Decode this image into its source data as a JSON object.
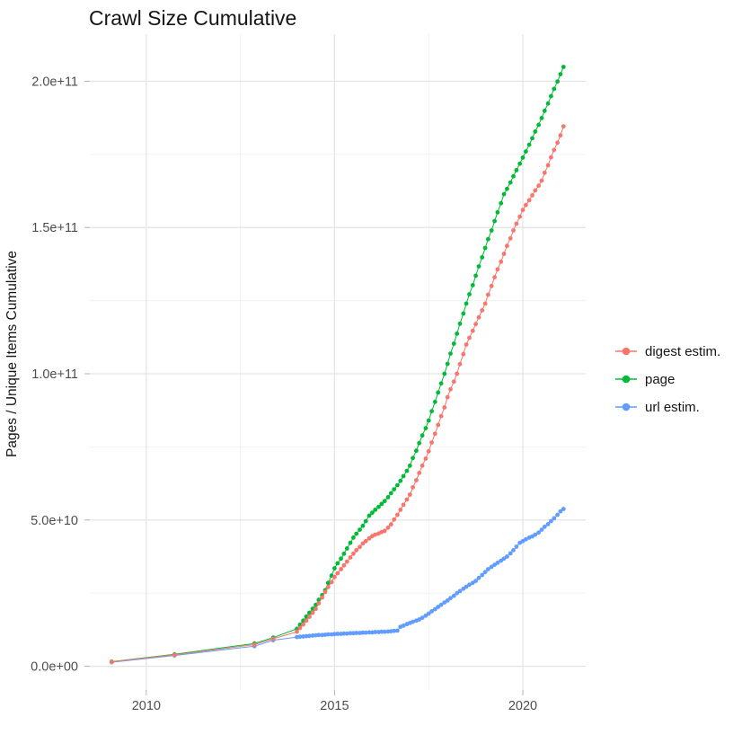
{
  "title": "Crawl Size Cumulative",
  "colors": {
    "background": "#ffffff",
    "grid_major": "#e3e3e3",
    "grid_minor": "#f0f0f0",
    "tick_mark": "#b3b3b3",
    "tick_label": "#4d4d4d",
    "text": "#151515"
  },
  "chart_data": {
    "type": "scatter",
    "title": "Crawl Size Cumulative",
    "xlabel": "",
    "ylabel": "Pages / Unique Items Cumulative",
    "legend_position": "right",
    "grid": true,
    "unit": "values are billions (1e9) of pages / unique items",
    "xlim": [
      2008.5,
      2021.67
    ],
    "ylim": [
      -8.1,
      216.1
    ],
    "x_ticks": [
      {
        "value": 2010,
        "label": "2010"
      },
      {
        "value": 2015,
        "label": "2015"
      },
      {
        "value": 2020,
        "label": "2020"
      }
    ],
    "y_ticks": [
      {
        "value": 0,
        "label": "0.0e+00"
      },
      {
        "value": 50,
        "label": "5.0e+10"
      },
      {
        "value": 100,
        "label": "1.0e+11"
      },
      {
        "value": 150,
        "label": "1.5e+11"
      },
      {
        "value": 200,
        "label": "2.0e+11"
      }
    ],
    "x_minor": [
      2012.5,
      2017.5
    ],
    "y_minor": [
      25,
      75,
      125,
      175
    ],
    "series": [
      {
        "key": "digest-estim",
        "name": "digest estim.",
        "color": "#F8766D",
        "z": 3,
        "points": [
          [
            2009.08,
            1.5
          ],
          [
            2010.75,
            3.9
          ],
          [
            2012.87,
            7.4
          ],
          [
            2013.37,
            9.4
          ],
          [
            2014,
            11.8
          ],
          [
            2014.08,
            13.1
          ],
          [
            2014.17,
            14.3
          ],
          [
            2014.25,
            15.6
          ],
          [
            2014.33,
            16.9
          ],
          [
            2014.42,
            18.3
          ],
          [
            2014.5,
            19.6
          ],
          [
            2014.58,
            21.5
          ],
          [
            2014.67,
            23.5
          ],
          [
            2014.75,
            25.4
          ],
          [
            2014.83,
            27.1
          ],
          [
            2014.92,
            28.8
          ],
          [
            2015,
            30.5
          ],
          [
            2015.08,
            31.8
          ],
          [
            2015.17,
            33.2
          ],
          [
            2015.25,
            34.5
          ],
          [
            2015.33,
            35.8
          ],
          [
            2015.42,
            37.2
          ],
          [
            2015.5,
            38.5
          ],
          [
            2015.58,
            39.7
          ],
          [
            2015.67,
            40.8
          ],
          [
            2015.75,
            42
          ],
          [
            2015.83,
            42.8
          ],
          [
            2015.92,
            43.7
          ],
          [
            2016,
            44.5
          ],
          [
            2016.08,
            45
          ],
          [
            2016.17,
            45.4
          ],
          [
            2016.25,
            45.9
          ],
          [
            2016.33,
            46.3
          ],
          [
            2016.42,
            47.4
          ],
          [
            2016.5,
            48.5
          ],
          [
            2016.58,
            50.2
          ],
          [
            2016.67,
            51.8
          ],
          [
            2016.75,
            53.5
          ],
          [
            2016.83,
            55.2
          ],
          [
            2016.92,
            57
          ],
          [
            2017,
            58.7
          ],
          [
            2017.08,
            61.2
          ],
          [
            2017.17,
            63.6
          ],
          [
            2017.25,
            66.1
          ],
          [
            2017.33,
            68.6
          ],
          [
            2017.42,
            71
          ],
          [
            2017.5,
            73.5
          ],
          [
            2017.58,
            76.5
          ],
          [
            2017.67,
            79.5
          ],
          [
            2017.75,
            82.5
          ],
          [
            2017.83,
            85.5
          ],
          [
            2017.92,
            88.5
          ],
          [
            2018,
            92
          ],
          [
            2018.08,
            94.7
          ],
          [
            2018.17,
            97.3
          ],
          [
            2018.25,
            100
          ],
          [
            2018.33,
            103.3
          ],
          [
            2018.42,
            106.7
          ],
          [
            2018.5,
            110
          ],
          [
            2018.58,
            112.3
          ],
          [
            2018.67,
            114.7
          ],
          [
            2018.75,
            117
          ],
          [
            2018.83,
            119.3
          ],
          [
            2018.92,
            121.7
          ],
          [
            2019,
            124
          ],
          [
            2019.08,
            127
          ],
          [
            2019.17,
            130
          ],
          [
            2019.25,
            133
          ],
          [
            2019.33,
            135.7
          ],
          [
            2019.42,
            138.3
          ],
          [
            2019.5,
            141
          ],
          [
            2019.58,
            143.7
          ],
          [
            2019.67,
            146.3
          ],
          [
            2019.75,
            149
          ],
          [
            2019.83,
            151.3
          ],
          [
            2019.92,
            153.7
          ],
          [
            2020,
            156
          ],
          [
            2020.08,
            157.7
          ],
          [
            2020.17,
            159.3
          ],
          [
            2020.25,
            161
          ],
          [
            2020.33,
            162.7
          ],
          [
            2020.42,
            164.3
          ],
          [
            2020.5,
            166
          ],
          [
            2020.58,
            168.7
          ],
          [
            2020.67,
            171.3
          ],
          [
            2020.75,
            174
          ],
          [
            2020.83,
            176.5
          ],
          [
            2020.92,
            179
          ],
          [
            2021,
            181.5
          ],
          [
            2021.08,
            184.6
          ]
        ]
      },
      {
        "key": "page",
        "name": "page",
        "color": "#00BA38",
        "z": 1,
        "points": [
          [
            2009.08,
            1.6
          ],
          [
            2010.75,
            4.1
          ],
          [
            2012.87,
            7.8
          ],
          [
            2013.37,
            9.8
          ],
          [
            2014,
            12.8
          ],
          [
            2014.08,
            14.2
          ],
          [
            2014.17,
            15.6
          ],
          [
            2014.25,
            17
          ],
          [
            2014.33,
            18.3
          ],
          [
            2014.42,
            19.7
          ],
          [
            2014.5,
            21
          ],
          [
            2014.58,
            22.7
          ],
          [
            2014.67,
            24.3
          ],
          [
            2014.75,
            26
          ],
          [
            2014.83,
            28.5
          ],
          [
            2014.92,
            31
          ],
          [
            2015,
            33.5
          ],
          [
            2015.08,
            35.2
          ],
          [
            2015.17,
            36.8
          ],
          [
            2015.25,
            38.5
          ],
          [
            2015.33,
            40.3
          ],
          [
            2015.42,
            42.2
          ],
          [
            2015.5,
            44
          ],
          [
            2015.58,
            45.3
          ],
          [
            2015.67,
            46.7
          ],
          [
            2015.75,
            48
          ],
          [
            2015.83,
            49.6
          ],
          [
            2015.92,
            51.5
          ],
          [
            2016,
            52.5
          ],
          [
            2016.08,
            53.5
          ],
          [
            2016.17,
            54.5
          ],
          [
            2016.25,
            55.5
          ],
          [
            2016.33,
            56.5
          ],
          [
            2016.42,
            57.8
          ],
          [
            2016.5,
            59.2
          ],
          [
            2016.58,
            60.5
          ],
          [
            2016.67,
            61.9
          ],
          [
            2016.75,
            63.4
          ],
          [
            2016.83,
            65
          ],
          [
            2016.92,
            66.8
          ],
          [
            2017,
            68.6
          ],
          [
            2017.08,
            71.2
          ],
          [
            2017.17,
            73.7
          ],
          [
            2017.25,
            76.3
          ],
          [
            2017.33,
            78.9
          ],
          [
            2017.42,
            81.4
          ],
          [
            2017.5,
            84
          ],
          [
            2017.58,
            87.2
          ],
          [
            2017.67,
            90.4
          ],
          [
            2017.75,
            93.6
          ],
          [
            2017.83,
            96.7
          ],
          [
            2017.92,
            100
          ],
          [
            2018,
            103.4
          ],
          [
            2018.08,
            106.9
          ],
          [
            2018.17,
            110.3
          ],
          [
            2018.25,
            113.7
          ],
          [
            2018.33,
            117.1
          ],
          [
            2018.42,
            120.6
          ],
          [
            2018.5,
            124
          ],
          [
            2018.58,
            127.2
          ],
          [
            2018.67,
            130.3
          ],
          [
            2018.75,
            133.5
          ],
          [
            2018.83,
            136.7
          ],
          [
            2018.92,
            139.8
          ],
          [
            2019,
            143
          ],
          [
            2019.08,
            146
          ],
          [
            2019.17,
            149
          ],
          [
            2019.25,
            152.2
          ],
          [
            2019.33,
            155.2
          ],
          [
            2019.42,
            158.3
          ],
          [
            2019.5,
            161.4
          ],
          [
            2019.58,
            163.2
          ],
          [
            2019.67,
            165.4
          ],
          [
            2019.75,
            167.5
          ],
          [
            2019.83,
            169.6
          ],
          [
            2019.92,
            171.8
          ],
          [
            2020,
            173.9
          ],
          [
            2020.08,
            176
          ],
          [
            2020.17,
            178.3
          ],
          [
            2020.25,
            180.5
          ],
          [
            2020.33,
            182.8
          ],
          [
            2020.42,
            185.1
          ],
          [
            2020.5,
            187.4
          ],
          [
            2020.58,
            189.9
          ],
          [
            2020.67,
            192.4
          ],
          [
            2020.75,
            194.9
          ],
          [
            2020.83,
            197.4
          ],
          [
            2020.92,
            199.9
          ],
          [
            2021,
            202.4
          ],
          [
            2021.08,
            204.9
          ]
        ]
      },
      {
        "key": "url-estim",
        "name": "url estim.",
        "color": "#619CFF",
        "z": 2,
        "points": [
          [
            2009.08,
            1.4
          ],
          [
            2010.75,
            3.7
          ],
          [
            2012.87,
            6.9
          ],
          [
            2013.37,
            8.9
          ],
          [
            2014,
            10
          ],
          [
            2014.08,
            10.1
          ],
          [
            2014.17,
            10.2
          ],
          [
            2014.25,
            10.3
          ],
          [
            2014.33,
            10.4
          ],
          [
            2014.42,
            10.5
          ],
          [
            2014.5,
            10.6
          ],
          [
            2014.58,
            10.7
          ],
          [
            2014.67,
            10.7
          ],
          [
            2014.75,
            10.8
          ],
          [
            2014.83,
            10.9
          ],
          [
            2014.92,
            10.9
          ],
          [
            2015,
            11
          ],
          [
            2015.08,
            11.1
          ],
          [
            2015.17,
            11.1
          ],
          [
            2015.25,
            11.2
          ],
          [
            2015.33,
            11.2
          ],
          [
            2015.42,
            11.3
          ],
          [
            2015.5,
            11.3
          ],
          [
            2015.58,
            11.4
          ],
          [
            2015.67,
            11.4
          ],
          [
            2015.75,
            11.5
          ],
          [
            2015.83,
            11.5
          ],
          [
            2015.92,
            11.6
          ],
          [
            2016,
            11.6
          ],
          [
            2016.08,
            11.7
          ],
          [
            2016.17,
            11.7
          ],
          [
            2016.25,
            11.8
          ],
          [
            2016.33,
            11.8
          ],
          [
            2016.42,
            11.9
          ],
          [
            2016.5,
            12
          ],
          [
            2016.58,
            12.1
          ],
          [
            2016.67,
            12.2
          ],
          [
            2016.75,
            13.5
          ],
          [
            2016.83,
            13.9
          ],
          [
            2016.92,
            14.4
          ],
          [
            2017,
            14.8
          ],
          [
            2017.08,
            15.2
          ],
          [
            2017.17,
            15.6
          ],
          [
            2017.25,
            16
          ],
          [
            2017.33,
            16.6
          ],
          [
            2017.42,
            17.3
          ],
          [
            2017.5,
            18
          ],
          [
            2017.58,
            18.8
          ],
          [
            2017.67,
            19.5
          ],
          [
            2017.75,
            20.3
          ],
          [
            2017.83,
            21
          ],
          [
            2017.92,
            21.8
          ],
          [
            2018,
            22.5
          ],
          [
            2018.08,
            23.3
          ],
          [
            2018.17,
            24.1
          ],
          [
            2018.25,
            25
          ],
          [
            2018.33,
            25.7
          ],
          [
            2018.42,
            26.5
          ],
          [
            2018.5,
            27.2
          ],
          [
            2018.58,
            27.9
          ],
          [
            2018.67,
            28.5
          ],
          [
            2018.75,
            29.2
          ],
          [
            2018.83,
            30.2
          ],
          [
            2018.92,
            31.2
          ],
          [
            2019,
            32.2
          ],
          [
            2019.08,
            33.2
          ],
          [
            2019.17,
            34
          ],
          [
            2019.25,
            34.7
          ],
          [
            2019.33,
            35.4
          ],
          [
            2019.42,
            36.1
          ],
          [
            2019.5,
            36.8
          ],
          [
            2019.58,
            37.5
          ],
          [
            2019.67,
            38.6
          ],
          [
            2019.75,
            39.7
          ],
          [
            2019.83,
            40.9
          ],
          [
            2019.92,
            42.2
          ],
          [
            2020,
            42.8
          ],
          [
            2020.08,
            43.4
          ],
          [
            2020.17,
            44
          ],
          [
            2020.25,
            44.4
          ],
          [
            2020.33,
            45
          ],
          [
            2020.42,
            45.7
          ],
          [
            2020.5,
            46.7
          ],
          [
            2020.58,
            47.7
          ],
          [
            2020.67,
            48.6
          ],
          [
            2020.75,
            49.6
          ],
          [
            2020.83,
            50.6
          ],
          [
            2020.92,
            51.8
          ],
          [
            2021,
            53
          ],
          [
            2021.08,
            53.8
          ]
        ]
      }
    ]
  }
}
